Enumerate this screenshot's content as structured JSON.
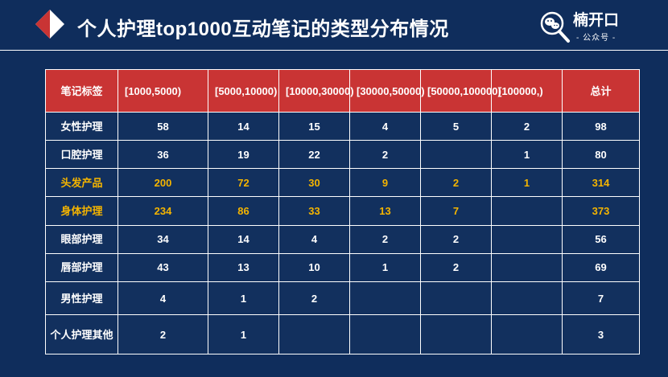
{
  "header": {
    "title": "个人护理top1000互动笔记的类型分布情况",
    "brand_name": "楠开口",
    "brand_sub": "- 公众号 -"
  },
  "colors": {
    "background": "#0f2d5c",
    "header_red": "#c93434",
    "highlight": "#f4b400",
    "text": "#ffffff"
  },
  "table": {
    "columns": [
      "笔记标签",
      "[1000,5000)",
      "[5000,10000)",
      "[10000,30000)",
      "[30000,50000)",
      "[50000,100000)",
      "[100000,)",
      "总计"
    ],
    "rows": [
      {
        "label": "女性护理",
        "highlight": false,
        "cells": [
          "58",
          "14",
          "15",
          "4",
          "5",
          "2",
          "98"
        ]
      },
      {
        "label": "口腔护理",
        "highlight": false,
        "cells": [
          "36",
          "19",
          "22",
          "2",
          "",
          "1",
          "80"
        ]
      },
      {
        "label": "头发产品",
        "highlight": true,
        "cells": [
          "200",
          "72",
          "30",
          "9",
          "2",
          "1",
          "314"
        ]
      },
      {
        "label": "身体护理",
        "highlight": true,
        "cells": [
          "234",
          "86",
          "33",
          "13",
          "7",
          "",
          "373"
        ]
      },
      {
        "label": "眼部护理",
        "highlight": false,
        "cells": [
          "34",
          "14",
          "4",
          "2",
          "2",
          "",
          "56"
        ]
      },
      {
        "label": "唇部护理",
        "highlight": false,
        "cells": [
          "43",
          "13",
          "10",
          "1",
          "2",
          "",
          "69"
        ]
      },
      {
        "label": "男性护理",
        "highlight": false,
        "cells": [
          "4",
          "1",
          "2",
          "",
          "",
          "",
          "7"
        ]
      },
      {
        "label": "个人护理其他",
        "highlight": false,
        "cells": [
          "2",
          "1",
          "",
          "",
          "",
          "",
          "3"
        ]
      }
    ]
  }
}
